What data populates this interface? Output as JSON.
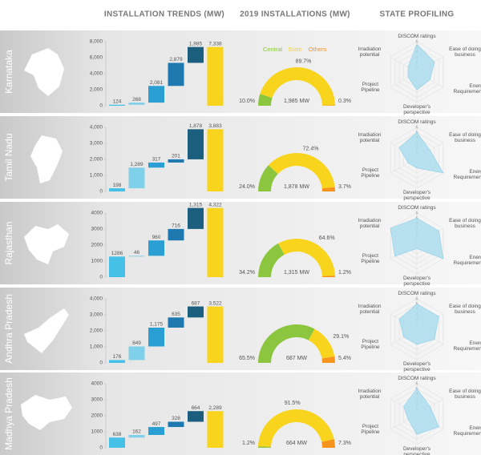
{
  "headers": [
    "INSTALLATION TRENDS (MW)",
    "2019 INSTALLATIONS (MW)",
    "STATE PROFILING"
  ],
  "chart_data": [
    {
      "type": "waterfall",
      "title": "Karnataka",
      "values": [
        124,
        268,
        2081,
        2879,
        1985
      ],
      "value_labels": [
        "124",
        "268",
        "2,081",
        "2,879",
        "1,985"
      ],
      "total": 7338,
      "total_label": "7,338",
      "colors": [
        "#45c0e6",
        "#7fd0ea",
        "#2a9fd4",
        "#1e79b0",
        "#1b5e7e"
      ],
      "total_color": "#f8d41c",
      "ylim": [
        0,
        8000
      ],
      "yticks": [
        0,
        {
          "value": 2000,
          "label": "2,000"
        },
        {
          "value": 4000,
          "label": "4,000"
        },
        {
          "value": 6000,
          "label": "6,000"
        },
        {
          "value": 8000,
          "label": "8,000"
        }
      ]
    },
    {
      "type": "donut",
      "categories": [
        "Central",
        "State",
        "Others"
      ],
      "values": [
        10.0,
        89.7,
        0.3
      ],
      "value_labels": [
        "10.0%",
        "89.7%",
        "0.3%"
      ],
      "center_label": "1,985 MW",
      "colors": [
        "#8cc63f",
        "#f8d41c",
        "#f7941d"
      ]
    },
    {
      "type": "radar",
      "axes": [
        "DISCOM ratings",
        "Ease of doing business",
        "Energy Requirements",
        "Developer's perspective",
        "Project Pipeline",
        "Irradiation potential"
      ],
      "values": [
        5.5,
        4,
        3,
        3.5,
        2,
        2
      ],
      "rlim": [
        0,
        6
      ],
      "rticks": [
        1,
        2,
        3,
        4,
        5,
        6
      ],
      "color": "#a9dcef"
    },
    {
      "type": "waterfall",
      "title": "Tamil Nadu",
      "values": [
        198,
        1289,
        317,
        201,
        1878
      ],
      "value_labels": [
        "198",
        "1,289",
        "317",
        "201",
        "1,878"
      ],
      "total": 3883,
      "total_label": "3,883",
      "colors": [
        "#45c0e6",
        "#7fd0ea",
        "#2a9fd4",
        "#1e79b0",
        "#1b5e7e"
      ],
      "total_color": "#f8d41c",
      "ylim": [
        0,
        4000
      ],
      "yticks": [
        0,
        {
          "value": 1000,
          "label": "1,000"
        },
        {
          "value": 2000,
          "label": "2,000"
        },
        {
          "value": 3000,
          "label": "3,000"
        },
        {
          "value": 4000,
          "label": "4,000"
        }
      ]
    },
    {
      "type": "donut",
      "values": [
        24.0,
        72.4,
        3.7
      ],
      "value_labels": [
        "24.0%",
        "72.4%",
        "3.7%"
      ],
      "center_label": "1,878 MW",
      "colors": [
        "#8cc63f",
        "#f8d41c",
        "#f7941d"
      ]
    },
    {
      "type": "radar",
      "axes": [
        "DISCOM ratings",
        "Ease of doing business",
        "Energy Requirements",
        "Developer's perspective",
        "Project Pipeline",
        "Irradiation potential"
      ],
      "values": [
        5,
        3,
        6,
        2,
        2,
        4
      ],
      "rlim": [
        0,
        6
      ],
      "rticks": [
        1,
        2,
        3,
        4,
        5,
        6
      ],
      "color": "#a9dcef"
    },
    {
      "type": "waterfall",
      "title": "Rajasthan",
      "values": [
        1286,
        46,
        960,
        716,
        1315
      ],
      "value_labels": [
        "1286",
        "46",
        "960",
        "716",
        "1,315"
      ],
      "total": 4322,
      "total_label": "4,322",
      "colors": [
        "#45c0e6",
        "#7fd0ea",
        "#2a9fd4",
        "#1e79b0",
        "#1b5e7e"
      ],
      "total_color": "#f8d41c",
      "ylim": [
        0,
        4000
      ],
      "yticks": [
        0,
        1000,
        2000,
        3000,
        4000
      ]
    },
    {
      "type": "donut",
      "values": [
        34.2,
        64.6,
        1.2
      ],
      "value_labels": [
        "34.2%",
        "64.6%",
        "1.2%"
      ],
      "center_label": "1,315 MW",
      "colors": [
        "#8cc63f",
        "#f8d41c",
        "#f7941d"
      ]
    },
    {
      "type": "radar",
      "axes": [
        "DISCOM ratings",
        "Ease of doing business",
        "Energy Requirements",
        "Developer's perspective",
        "Project Pipeline",
        "Irradiation potential"
      ],
      "values": [
        5,
        5,
        6,
        1,
        5,
        6
      ],
      "rlim": [
        0,
        6
      ],
      "rticks": [
        1,
        2,
        3,
        4,
        5,
        6
      ],
      "color": "#a9dcef"
    },
    {
      "type": "waterfall",
      "title": "Andhra Pradesh",
      "values": [
        176,
        849,
        1175,
        635,
        687
      ],
      "value_labels": [
        "176",
        "849",
        "1,175",
        "635",
        "687"
      ],
      "total": 3522,
      "total_label": "3,522",
      "colors": [
        "#45c0e6",
        "#7fd0ea",
        "#2a9fd4",
        "#1e79b0",
        "#1b5e7e"
      ],
      "total_color": "#f8d41c",
      "ylim": [
        0,
        4000
      ],
      "yticks": [
        0,
        {
          "value": 1000,
          "label": "1,000"
        },
        {
          "value": 2000,
          "label": "2,000"
        },
        {
          "value": 3000,
          "label": "3,000"
        },
        {
          "value": 4000,
          "label": "4,000"
        }
      ]
    },
    {
      "type": "donut",
      "values": [
        65.5,
        29.1,
        5.4
      ],
      "value_labels": [
        "65.5%",
        "29.1%",
        "5.4%"
      ],
      "center_label": "687 MW",
      "colors": [
        "#8cc63f",
        "#f8d41c",
        "#f7941d"
      ]
    },
    {
      "type": "radar",
      "axes": [
        "DISCOM ratings",
        "Ease of doing business",
        "Energy Requirements",
        "Developer's perspective",
        "Project Pipeline",
        "Irradiation potential"
      ],
      "values": [
        5,
        5,
        4,
        3,
        3,
        4
      ],
      "rlim": [
        0,
        6
      ],
      "rticks": [
        1,
        2,
        3,
        4,
        5,
        6
      ],
      "color": "#a9dcef"
    },
    {
      "type": "waterfall",
      "title": "Madhya Pradesh",
      "values": [
        638,
        162,
        497,
        328,
        664
      ],
      "value_labels": [
        "638",
        "162",
        "497",
        "328",
        "664"
      ],
      "total": 2289,
      "total_label": "2,289",
      "colors": [
        "#45c0e6",
        "#7fd0ea",
        "#2a9fd4",
        "#1e79b0",
        "#1b5e7e"
      ],
      "total_color": "#f8d41c",
      "ylim": [
        0,
        4000
      ],
      "yticks": [
        0,
        1000,
        2000,
        3000,
        4000
      ]
    },
    {
      "type": "donut",
      "values": [
        1.2,
        91.5,
        7.3
      ],
      "value_labels": [
        "1.2%",
        "91.5%",
        "7.3%"
      ],
      "center_label": "664 MW",
      "colors": [
        "#8cc63f",
        "#f8d41c",
        "#f7941d"
      ]
    },
    {
      "type": "radar",
      "axes": [
        "DISCOM ratings",
        "Ease of doing business",
        "Energy Requirements",
        "Developer's perspective",
        "Project Pipeline",
        "Irradiation potential"
      ],
      "values": [
        5,
        3,
        5,
        4,
        2,
        3
      ],
      "rlim": [
        0,
        6
      ],
      "rticks": [
        1,
        2,
        3,
        4,
        5,
        6
      ],
      "color": "#a9dcef"
    }
  ]
}
